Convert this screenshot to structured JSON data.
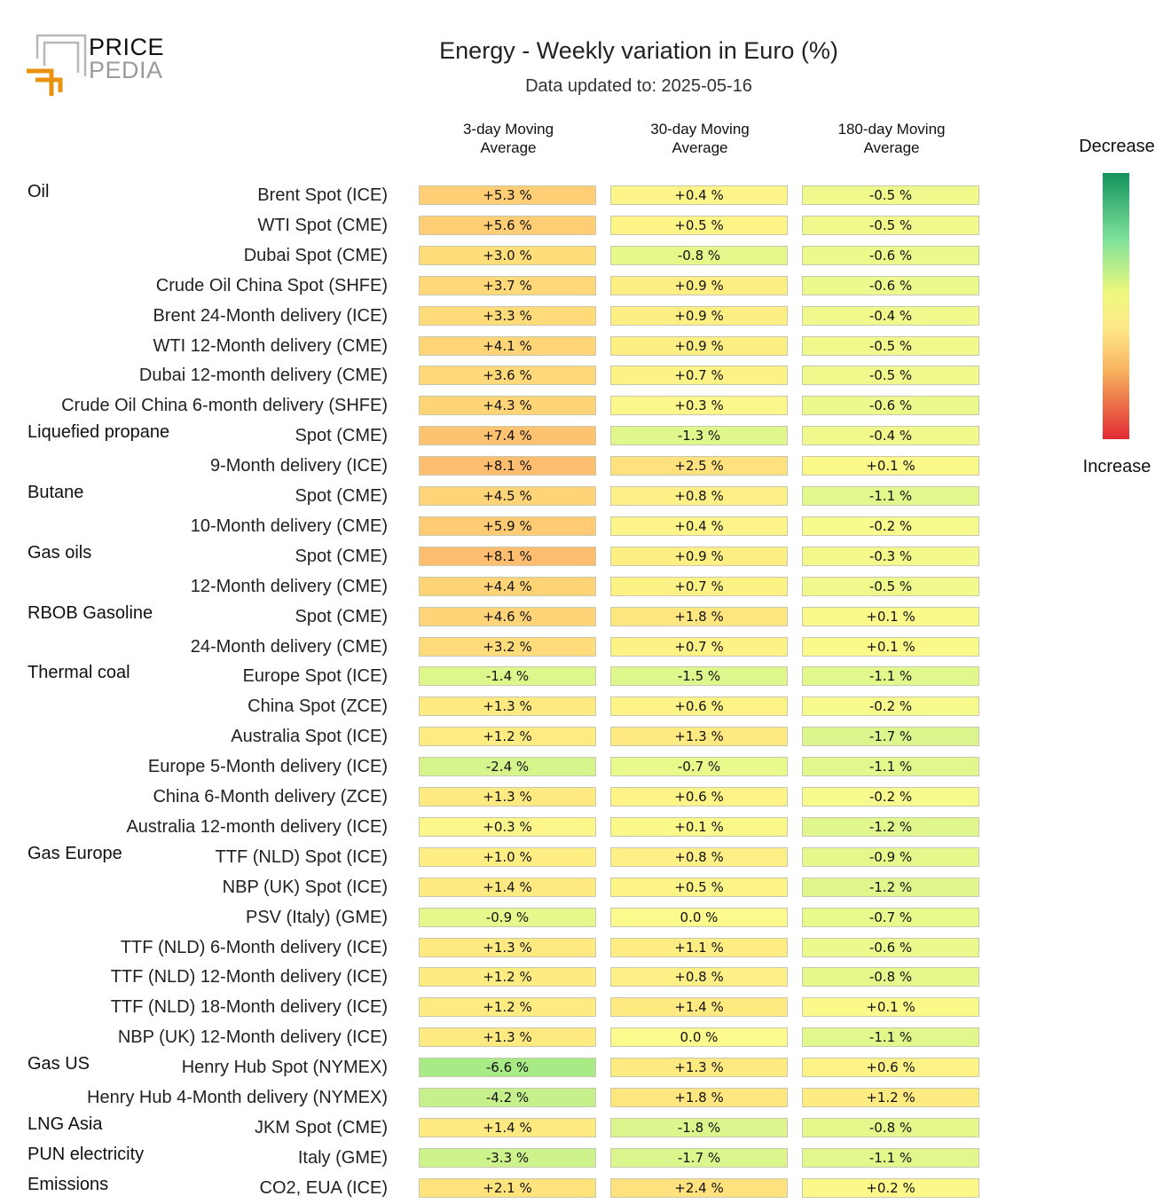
{
  "logo": {
    "line1": "PRICE",
    "line2": "PEDIA"
  },
  "chart_data": {
    "type": "table",
    "title": "Energy - Weekly variation in Euro (%)",
    "subtitle": "Data updated to: 2025-05-16",
    "columns": [
      "3-day Moving Average",
      "30-day Moving Average",
      "180-day Moving Average"
    ],
    "columns_line1": [
      "3-day Moving",
      "30-day Moving",
      "180-day Moving"
    ],
    "columns_line2": [
      "Average",
      "Average",
      "Average"
    ],
    "legend": {
      "top": "Decrease",
      "bottom": "Increase"
    },
    "rows": [
      {
        "group": "Oil",
        "label": "Brent Spot (ICE)",
        "values": [
          "+5.3 %",
          "+0.4 %",
          "-0.5 %"
        ],
        "nums": [
          5.3,
          0.4,
          -0.5
        ]
      },
      {
        "group": "",
        "label": "WTI Spot (CME)",
        "values": [
          "+5.6 %",
          "+0.5 %",
          "-0.5 %"
        ],
        "nums": [
          5.6,
          0.5,
          -0.5
        ]
      },
      {
        "group": "",
        "label": "Dubai Spot (CME)",
        "values": [
          "+3.0 %",
          "-0.8 %",
          "-0.6 %"
        ],
        "nums": [
          3.0,
          -0.8,
          -0.6
        ]
      },
      {
        "group": "",
        "label": "Crude Oil China Spot (SHFE)",
        "values": [
          "+3.7 %",
          "+0.9 %",
          "-0.6 %"
        ],
        "nums": [
          3.7,
          0.9,
          -0.6
        ]
      },
      {
        "group": "",
        "label": "Brent 24-Month delivery (ICE)",
        "values": [
          "+3.3 %",
          "+0.9 %",
          "-0.4 %"
        ],
        "nums": [
          3.3,
          0.9,
          -0.4
        ]
      },
      {
        "group": "",
        "label": "WTI 12-Month delivery (CME)",
        "values": [
          "+4.1 %",
          "+0.9 %",
          "-0.5 %"
        ],
        "nums": [
          4.1,
          0.9,
          -0.5
        ]
      },
      {
        "group": "",
        "label": "Dubai 12-month delivery (CME)",
        "values": [
          "+3.6 %",
          "+0.7 %",
          "-0.5 %"
        ],
        "nums": [
          3.6,
          0.7,
          -0.5
        ]
      },
      {
        "group": "",
        "label": "Crude Oil China 6-month delivery (SHFE)",
        "values": [
          "+4.3 %",
          "+0.3 %",
          "-0.6 %"
        ],
        "nums": [
          4.3,
          0.3,
          -0.6
        ]
      },
      {
        "group": "Liquefied propane",
        "label": "Spot (CME)",
        "values": [
          "+7.4 %",
          "-1.3 %",
          "-0.4 %"
        ],
        "nums": [
          7.4,
          -1.3,
          -0.4
        ]
      },
      {
        "group": "",
        "label": "9-Month delivery (ICE)",
        "values": [
          "+8.1 %",
          "+2.5 %",
          "+0.1 %"
        ],
        "nums": [
          8.1,
          2.5,
          0.1
        ]
      },
      {
        "group": "Butane",
        "label": "Spot (CME)",
        "values": [
          "+4.5 %",
          "+0.8 %",
          "-1.1 %"
        ],
        "nums": [
          4.5,
          0.8,
          -1.1
        ]
      },
      {
        "group": "",
        "label": "10-Month delivery (CME)",
        "values": [
          "+5.9 %",
          "+0.4 %",
          "-0.2 %"
        ],
        "nums": [
          5.9,
          0.4,
          -0.2
        ]
      },
      {
        "group": "Gas oils",
        "label": "Spot (CME)",
        "values": [
          "+8.1 %",
          "+0.9 %",
          "-0.3 %"
        ],
        "nums": [
          8.1,
          0.9,
          -0.3
        ]
      },
      {
        "group": "",
        "label": "12-Month delivery (CME)",
        "values": [
          "+4.4 %",
          "+0.7 %",
          "-0.5 %"
        ],
        "nums": [
          4.4,
          0.7,
          -0.5
        ]
      },
      {
        "group": "RBOB Gasoline",
        "label": "Spot (CME)",
        "values": [
          "+4.6 %",
          "+1.8 %",
          "+0.1 %"
        ],
        "nums": [
          4.6,
          1.8,
          0.1
        ]
      },
      {
        "group": "",
        "label": "24-Month delivery (CME)",
        "values": [
          "+3.2 %",
          "+0.7 %",
          "+0.1 %"
        ],
        "nums": [
          3.2,
          0.7,
          0.1
        ]
      },
      {
        "group": "Thermal coal",
        "label": "Europe Spot (ICE)",
        "values": [
          "-1.4 %",
          "-1.5 %",
          "-1.1 %"
        ],
        "nums": [
          -1.4,
          -1.5,
          -1.1
        ]
      },
      {
        "group": "",
        "label": "China Spot (ZCE)",
        "values": [
          "+1.3 %",
          "+0.6 %",
          "-0.2 %"
        ],
        "nums": [
          1.3,
          0.6,
          -0.2
        ]
      },
      {
        "group": "",
        "label": "Australia Spot (ICE)",
        "values": [
          "+1.2 %",
          "+1.3 %",
          "-1.7 %"
        ],
        "nums": [
          1.2,
          1.3,
          -1.7
        ]
      },
      {
        "group": "",
        "label": "Europe 5-Month delivery (ICE)",
        "values": [
          "-2.4 %",
          "-0.7 %",
          "-1.1 %"
        ],
        "nums": [
          -2.4,
          -0.7,
          -1.1
        ]
      },
      {
        "group": "",
        "label": "China 6-Month delivery (ZCE)",
        "values": [
          "+1.3 %",
          "+0.6 %",
          "-0.2 %"
        ],
        "nums": [
          1.3,
          0.6,
          -0.2
        ]
      },
      {
        "group": "",
        "label": "Australia 12-month delivery (ICE)",
        "values": [
          "+0.3 %",
          "+0.1 %",
          "-1.2 %"
        ],
        "nums": [
          0.3,
          0.1,
          -1.2
        ]
      },
      {
        "group": "Gas Europe",
        "label": "TTF (NLD) Spot (ICE)",
        "values": [
          "+1.0 %",
          "+0.8 %",
          "-0.9 %"
        ],
        "nums": [
          1.0,
          0.8,
          -0.9
        ]
      },
      {
        "group": "",
        "label": "NBP (UK) Spot (ICE)",
        "values": [
          "+1.4 %",
          "+0.5 %",
          "-1.2 %"
        ],
        "nums": [
          1.4,
          0.5,
          -1.2
        ]
      },
      {
        "group": "",
        "label": "PSV (Italy) (GME)",
        "values": [
          "-0.9 %",
          "0.0 %",
          "-0.7 %"
        ],
        "nums": [
          -0.9,
          0.0,
          -0.7
        ]
      },
      {
        "group": "",
        "label": "TTF (NLD) 6-Month delivery (ICE)",
        "values": [
          "+1.3 %",
          "+1.1 %",
          "-0.6 %"
        ],
        "nums": [
          1.3,
          1.1,
          -0.6
        ]
      },
      {
        "group": "",
        "label": "TTF (NLD) 12-Month delivery (ICE)",
        "values": [
          "+1.2 %",
          "+0.8 %",
          "-0.8 %"
        ],
        "nums": [
          1.2,
          0.8,
          -0.8
        ]
      },
      {
        "group": "",
        "label": "TTF (NLD) 18-Month delivery (ICE)",
        "values": [
          "+1.2 %",
          "+1.4 %",
          "+0.1 %"
        ],
        "nums": [
          1.2,
          1.4,
          0.1
        ]
      },
      {
        "group": "",
        "label": "NBP (UK) 12-Month delivery (ICE)",
        "values": [
          "+1.3 %",
          "0.0 %",
          "-1.1 %"
        ],
        "nums": [
          1.3,
          0.0,
          -1.1
        ]
      },
      {
        "group": "Gas US",
        "label": "Henry Hub Spot (NYMEX)",
        "values": [
          "-6.6 %",
          "+1.3 %",
          "+0.6 %"
        ],
        "nums": [
          -6.6,
          1.3,
          0.6
        ]
      },
      {
        "group": "",
        "label": "Henry Hub 4-Month delivery (NYMEX)",
        "values": [
          "-4.2 %",
          "+1.8 %",
          "+1.2 %"
        ],
        "nums": [
          -4.2,
          1.8,
          1.2
        ]
      },
      {
        "group": "LNG Asia",
        "label": "JKM Spot (CME)",
        "values": [
          "+1.4 %",
          "-1.8 %",
          "-0.8 %"
        ],
        "nums": [
          1.4,
          -1.8,
          -0.8
        ]
      },
      {
        "group": "PUN electricity",
        "label": "Italy (GME)",
        "values": [
          "-3.3 %",
          "-1.7 %",
          "-1.1 %"
        ],
        "nums": [
          -3.3,
          -1.7,
          -1.1
        ]
      },
      {
        "group": "Emissions",
        "label": "CO2, EUA (ICE)",
        "values": [
          "+2.1 %",
          "+2.4 %",
          "+0.2 %"
        ],
        "nums": [
          2.1,
          2.4,
          0.2
        ]
      }
    ]
  }
}
